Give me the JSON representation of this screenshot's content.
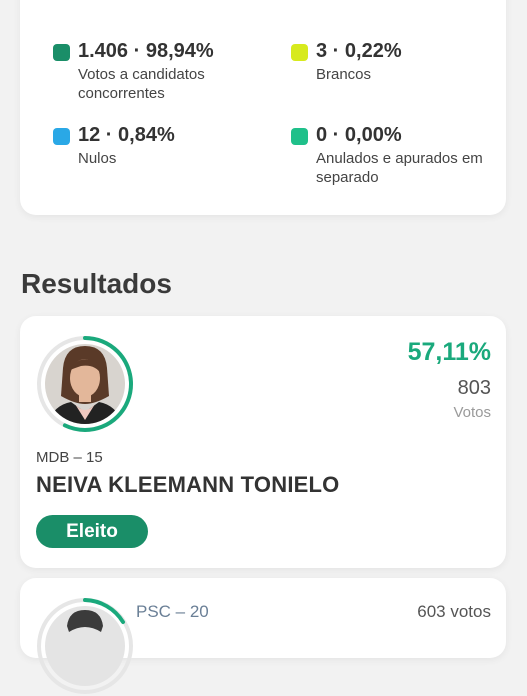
{
  "stats": [
    {
      "value": "1.406 · 98,94%",
      "label": "Votos a candidatos concorrentes",
      "color": "#1a8e68"
    },
    {
      "value": "3 · 0,22%",
      "label": "Brancos",
      "color": "#d7ea1d"
    },
    {
      "value": "12 · 0,84%",
      "label": "Nulos",
      "color": "#2aa8e6"
    },
    {
      "value": "0 · 0,00%",
      "label": "Anulados e apurados em separado",
      "color": "#1fc08a"
    }
  ],
  "section_title": "Resultados",
  "winner": {
    "percent": "57,11%",
    "votes": "803",
    "votes_label": "Votos",
    "party": "MDB – 15",
    "name": "NEIVA KLEEMANN TONIELO",
    "status": "Eleito",
    "share": 0.5711
  },
  "second": {
    "party": "PSC – 20",
    "votes": "603 votos"
  },
  "colors": {
    "accent": "#1aa97c",
    "elected_bg": "#1a8e68"
  }
}
